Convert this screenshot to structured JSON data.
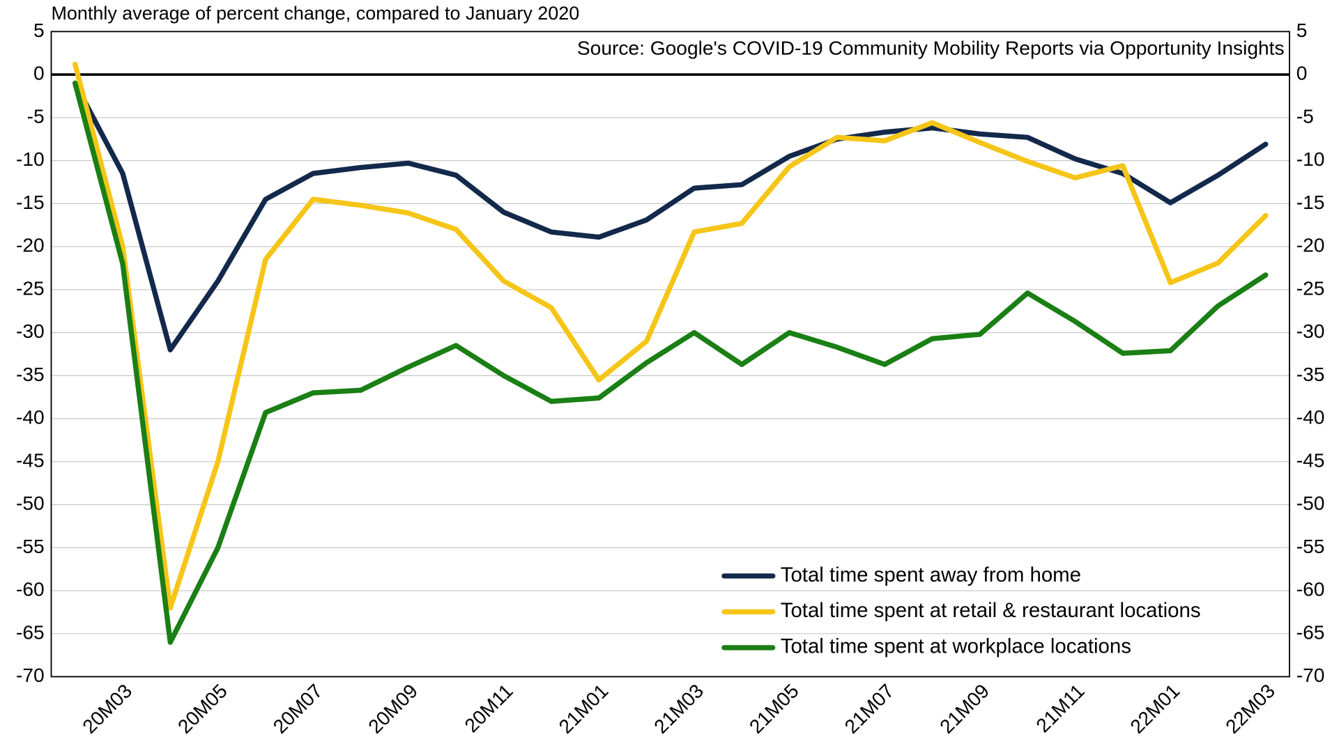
{
  "chart_data": {
    "type": "line",
    "title": "Monthly average of percent change, compared to January 2020",
    "annotation": "Source: Google's COVID-19 Community Mobility Reports via Opportunity Insights",
    "categories": [
      null,
      "20M03",
      null,
      "20M05",
      null,
      "20M07",
      null,
      "20M09",
      null,
      "20M11",
      null,
      "21M01",
      null,
      "21M03",
      null,
      "21M05",
      null,
      "21M07",
      null,
      "21M09",
      null,
      "21M11",
      null,
      "22M01",
      null,
      "22M03"
    ],
    "series": [
      {
        "name": "Total time spent away from home",
        "color": "#13294b",
        "values": [
          -1,
          -11.5,
          -32,
          -24,
          -14.5,
          -11.5,
          -10.8,
          -10.3,
          -11.7,
          -16,
          -18.3,
          -18.9,
          -16.9,
          -13.2,
          -12.8,
          -9.5,
          -7.5,
          -6.7,
          -6.2,
          -6.9,
          -7.3,
          -9.8,
          -11.5,
          -14.9,
          -11.7,
          -8.1
        ]
      },
      {
        "name": "Total time spent at retail & restaurant locations",
        "color": "#f5c518",
        "values": [
          1.2,
          -20,
          -62,
          -45,
          -21.5,
          -14.5,
          -15.2,
          -16.1,
          -18,
          -24,
          -27.1,
          -35.5,
          -31,
          -18.3,
          -17.3,
          -10.7,
          -7.3,
          -7.7,
          -5.6,
          -7.9,
          -10.1,
          -12,
          -10.6,
          -24.2,
          -21.9,
          -16.4
        ]
      },
      {
        "name": "Total time spent at workplace locations",
        "color": "#1a7f14",
        "values": [
          -1,
          -22,
          -66,
          -55,
          -39.3,
          -37,
          -36.7,
          -34,
          -31.5,
          -35,
          -38,
          -37.6,
          -33.5,
          -30,
          -33.7,
          -30,
          -31.7,
          -33.7,
          -30.7,
          -30.2,
          -25.4,
          -28.7,
          -32.4,
          -32.1,
          -26.9,
          -23.3
        ]
      }
    ],
    "ylim": [
      -70,
      5
    ],
    "yticks": [
      5,
      0,
      -5,
      -10,
      -15,
      -20,
      -25,
      -30,
      -35,
      -40,
      -45,
      -50,
      -55,
      -60,
      -65,
      -70
    ],
    "grid": true,
    "legend": "lower right"
  }
}
